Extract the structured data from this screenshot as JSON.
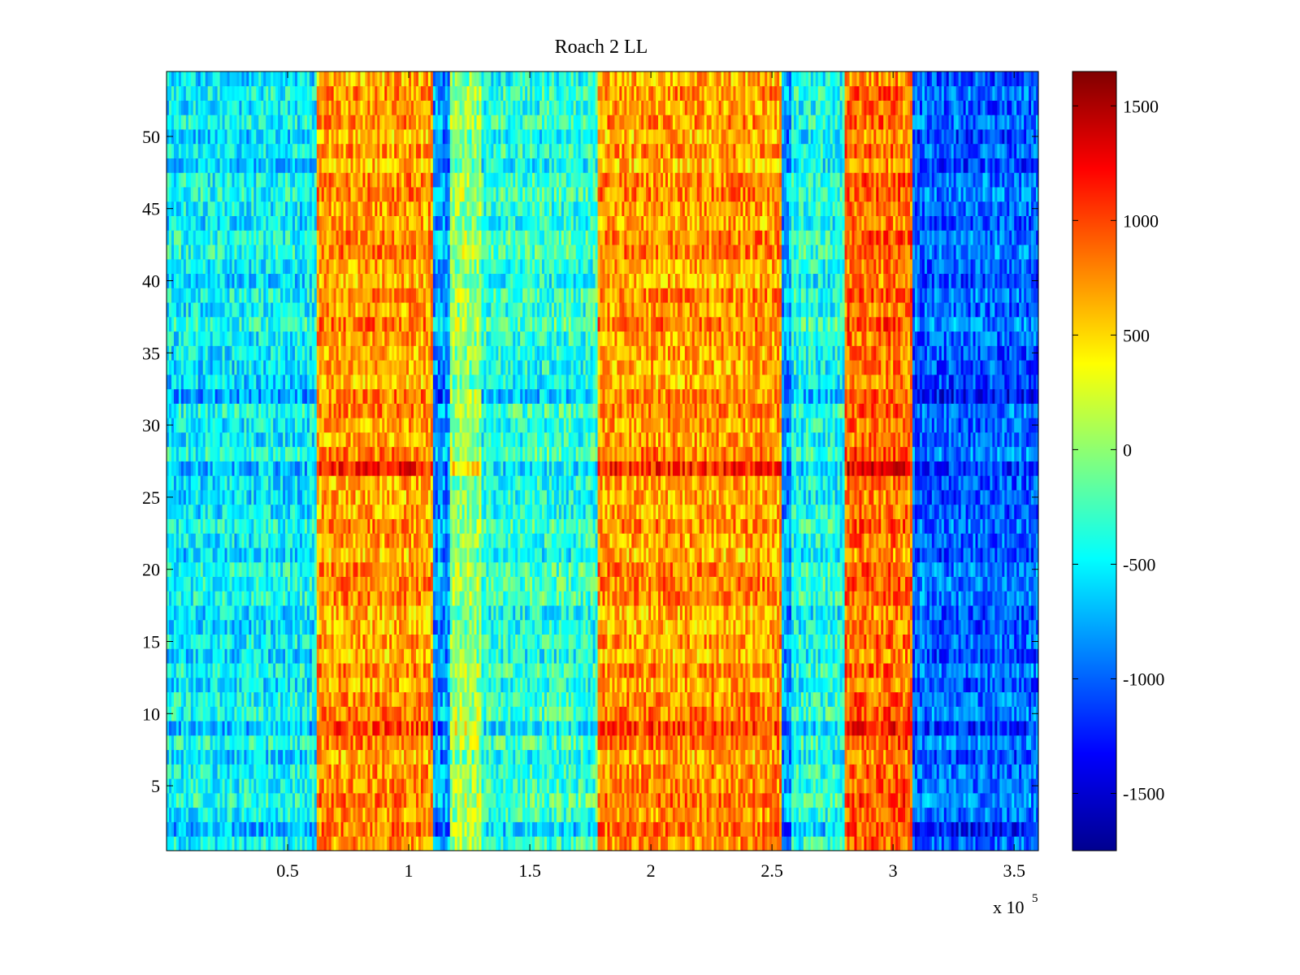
{
  "chart_data": {
    "type": "heatmap",
    "title": "Roach 2 LL",
    "xlabel": "",
    "ylabel": "",
    "x_multiplier_label": "x 10",
    "x_multiplier_exponent": "5",
    "xlim": [
      0,
      360000
    ],
    "ylim": [
      0.5,
      54.5
    ],
    "x_ticks": [
      {
        "value": 50000,
        "label": "0.5"
      },
      {
        "value": 100000,
        "label": "1"
      },
      {
        "value": 150000,
        "label": "1.5"
      },
      {
        "value": 200000,
        "label": "2"
      },
      {
        "value": 250000,
        "label": "2.5"
      },
      {
        "value": 300000,
        "label": "3"
      },
      {
        "value": 350000,
        "label": "3.5"
      }
    ],
    "y_ticks": [
      {
        "value": 5,
        "label": "5"
      },
      {
        "value": 10,
        "label": "10"
      },
      {
        "value": 15,
        "label": "15"
      },
      {
        "value": 20,
        "label": "20"
      },
      {
        "value": 25,
        "label": "25"
      },
      {
        "value": 30,
        "label": "30"
      },
      {
        "value": 35,
        "label": "35"
      },
      {
        "value": 40,
        "label": "40"
      },
      {
        "value": 45,
        "label": "45"
      },
      {
        "value": 50,
        "label": "50"
      }
    ],
    "rows": 54,
    "column_bands": [
      {
        "x_start": 0,
        "x_end": 62000,
        "mean_value": -500
      },
      {
        "x_start": 62000,
        "x_end": 110000,
        "mean_value": 700
      },
      {
        "x_start": 110000,
        "x_end": 117000,
        "mean_value": -800
      },
      {
        "x_start": 117000,
        "x_end": 130000,
        "mean_value": 0
      },
      {
        "x_start": 130000,
        "x_end": 178000,
        "mean_value": -350
      },
      {
        "x_start": 178000,
        "x_end": 254000,
        "mean_value": 700
      },
      {
        "x_start": 254000,
        "x_end": 258000,
        "mean_value": -800
      },
      {
        "x_start": 258000,
        "x_end": 280000,
        "mean_value": -400
      },
      {
        "x_start": 280000,
        "x_end": 308000,
        "mean_value": 850
      },
      {
        "x_start": 308000,
        "x_end": 360000,
        "mean_value": -1000
      }
    ],
    "row_highlights": [
      {
        "row": 27,
        "bands_shift": 300
      },
      {
        "row": 9,
        "bands_shift": 250
      },
      {
        "row": 32,
        "bands_shift": 200
      },
      {
        "row": 2,
        "bands_shift": 200
      }
    ],
    "colorbar": {
      "colormap": "jet",
      "clim": [
        -1750,
        1650
      ],
      "ticks": [
        {
          "value": 1500,
          "label": "1500"
        },
        {
          "value": 1000,
          "label": "1000"
        },
        {
          "value": 500,
          "label": "500"
        },
        {
          "value": 0,
          "label": "0"
        },
        {
          "value": -500,
          "label": "-500"
        },
        {
          "value": -1000,
          "label": "-1000"
        },
        {
          "value": -1500,
          "label": "-1500"
        }
      ]
    },
    "grid": false,
    "legend": "none"
  }
}
